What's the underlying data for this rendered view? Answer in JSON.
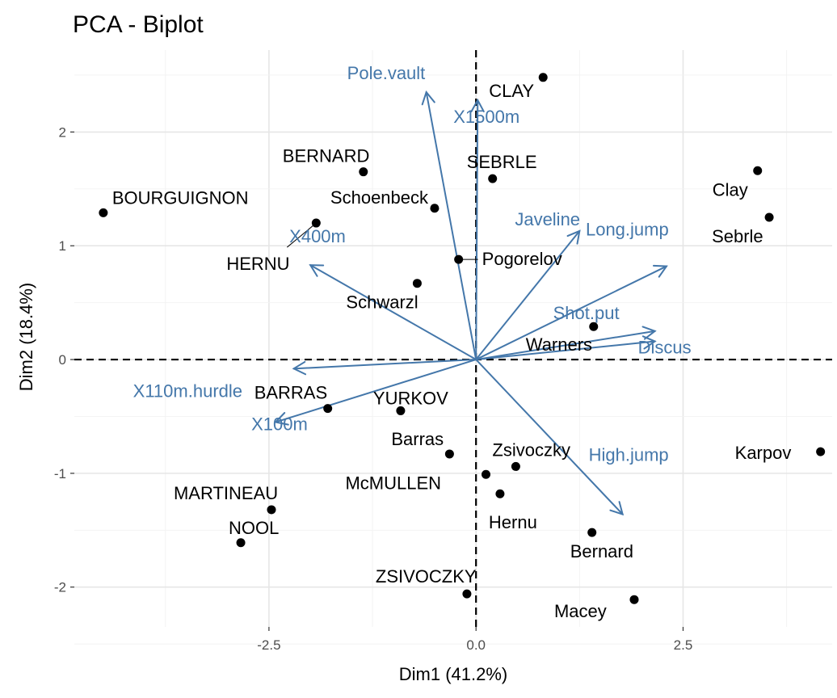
{
  "title": "PCA - Biplot",
  "chart_data": {
    "type": "scatter",
    "title": "PCA - Biplot",
    "xlabel": "Dim1 (41.2%)",
    "ylabel": "Dim2 (18.4%)",
    "xlim": [
      -4.85,
      4.3
    ],
    "ylim": [
      -2.35,
      2.72
    ],
    "x_ticks": [
      -2.5,
      0.0,
      2.5
    ],
    "x_tick_labels": [
      "-2.5",
      "0.0",
      "2.5"
    ],
    "y_ticks": [
      -2,
      -1,
      0,
      1,
      2
    ],
    "y_tick_labels": [
      "-2",
      "-1",
      "0",
      "1",
      "2"
    ],
    "grid": true,
    "reference_lines": {
      "x": 0,
      "y": 0
    },
    "arrow_color": "#4477aa",
    "point_color": "#000000",
    "individuals": [
      {
        "name": "SEBRLE",
        "x": 0.2,
        "y": 1.59
      },
      {
        "name": "CLAY",
        "x": 0.81,
        "y": 2.48
      },
      {
        "name": "BERNARD",
        "x": -1.36,
        "y": 1.65
      },
      {
        "name": "YURKOV",
        "x": -0.91,
        "y": -0.45
      },
      {
        "name": "ZSIVOCZKY",
        "x": -0.11,
        "y": -2.06
      },
      {
        "name": "McMULLEN",
        "x": 0.12,
        "y": -1.01
      },
      {
        "name": "MARTINEAU",
        "x": -2.47,
        "y": -1.32
      },
      {
        "name": "HERNU",
        "x": -1.93,
        "y": 1.2
      },
      {
        "name": "BARRAS",
        "x": -1.79,
        "y": -0.43
      },
      {
        "name": "NOOL",
        "x": -2.84,
        "y": -1.61
      },
      {
        "name": "BOURGUIGNON",
        "x": -4.5,
        "y": 1.29
      },
      {
        "name": "Sebrle",
        "x": 3.54,
        "y": 1.25
      },
      {
        "name": "Clay",
        "x": 3.4,
        "y": 1.66
      },
      {
        "name": "Karpov",
        "x": 4.16,
        "y": -0.81
      },
      {
        "name": "Macey",
        "x": 1.91,
        "y": -2.11
      },
      {
        "name": "Warners",
        "x": 1.42,
        "y": 0.29
      },
      {
        "name": "Zsivoczky",
        "x": 0.48,
        "y": -0.94
      },
      {
        "name": "Hernu",
        "x": 0.29,
        "y": -1.18
      },
      {
        "name": "Bernard",
        "x": 1.4,
        "y": -1.52
      },
      {
        "name": "Schwarzl",
        "x": -0.71,
        "y": 0.67
      },
      {
        "name": "Pogorelov",
        "x": -0.21,
        "y": 0.88
      },
      {
        "name": "Schoenbeck",
        "x": -0.5,
        "y": 1.33
      },
      {
        "name": "Barras",
        "x": -0.32,
        "y": -0.83
      }
    ],
    "variables": [
      {
        "name": "X100m",
        "x": -2.42,
        "y": -0.55
      },
      {
        "name": "Long.jump",
        "x": 2.3,
        "y": 0.82
      },
      {
        "name": "Shot.put",
        "x": 2.16,
        "y": 0.25
      },
      {
        "name": "High.jump",
        "x": 1.77,
        "y": -1.36
      },
      {
        "name": "X400m",
        "x": -2.0,
        "y": 0.83
      },
      {
        "name": "X110m.hurdle",
        "x": -2.2,
        "y": -0.08
      },
      {
        "name": "Discus",
        "x": 2.16,
        "y": 0.16
      },
      {
        "name": "Pole.vault",
        "x": -0.6,
        "y": 2.35
      },
      {
        "name": "Javeline",
        "x": 1.25,
        "y": 1.13
      },
      {
        "name": "X1500m",
        "x": 0.02,
        "y": 2.28
      }
    ]
  }
}
